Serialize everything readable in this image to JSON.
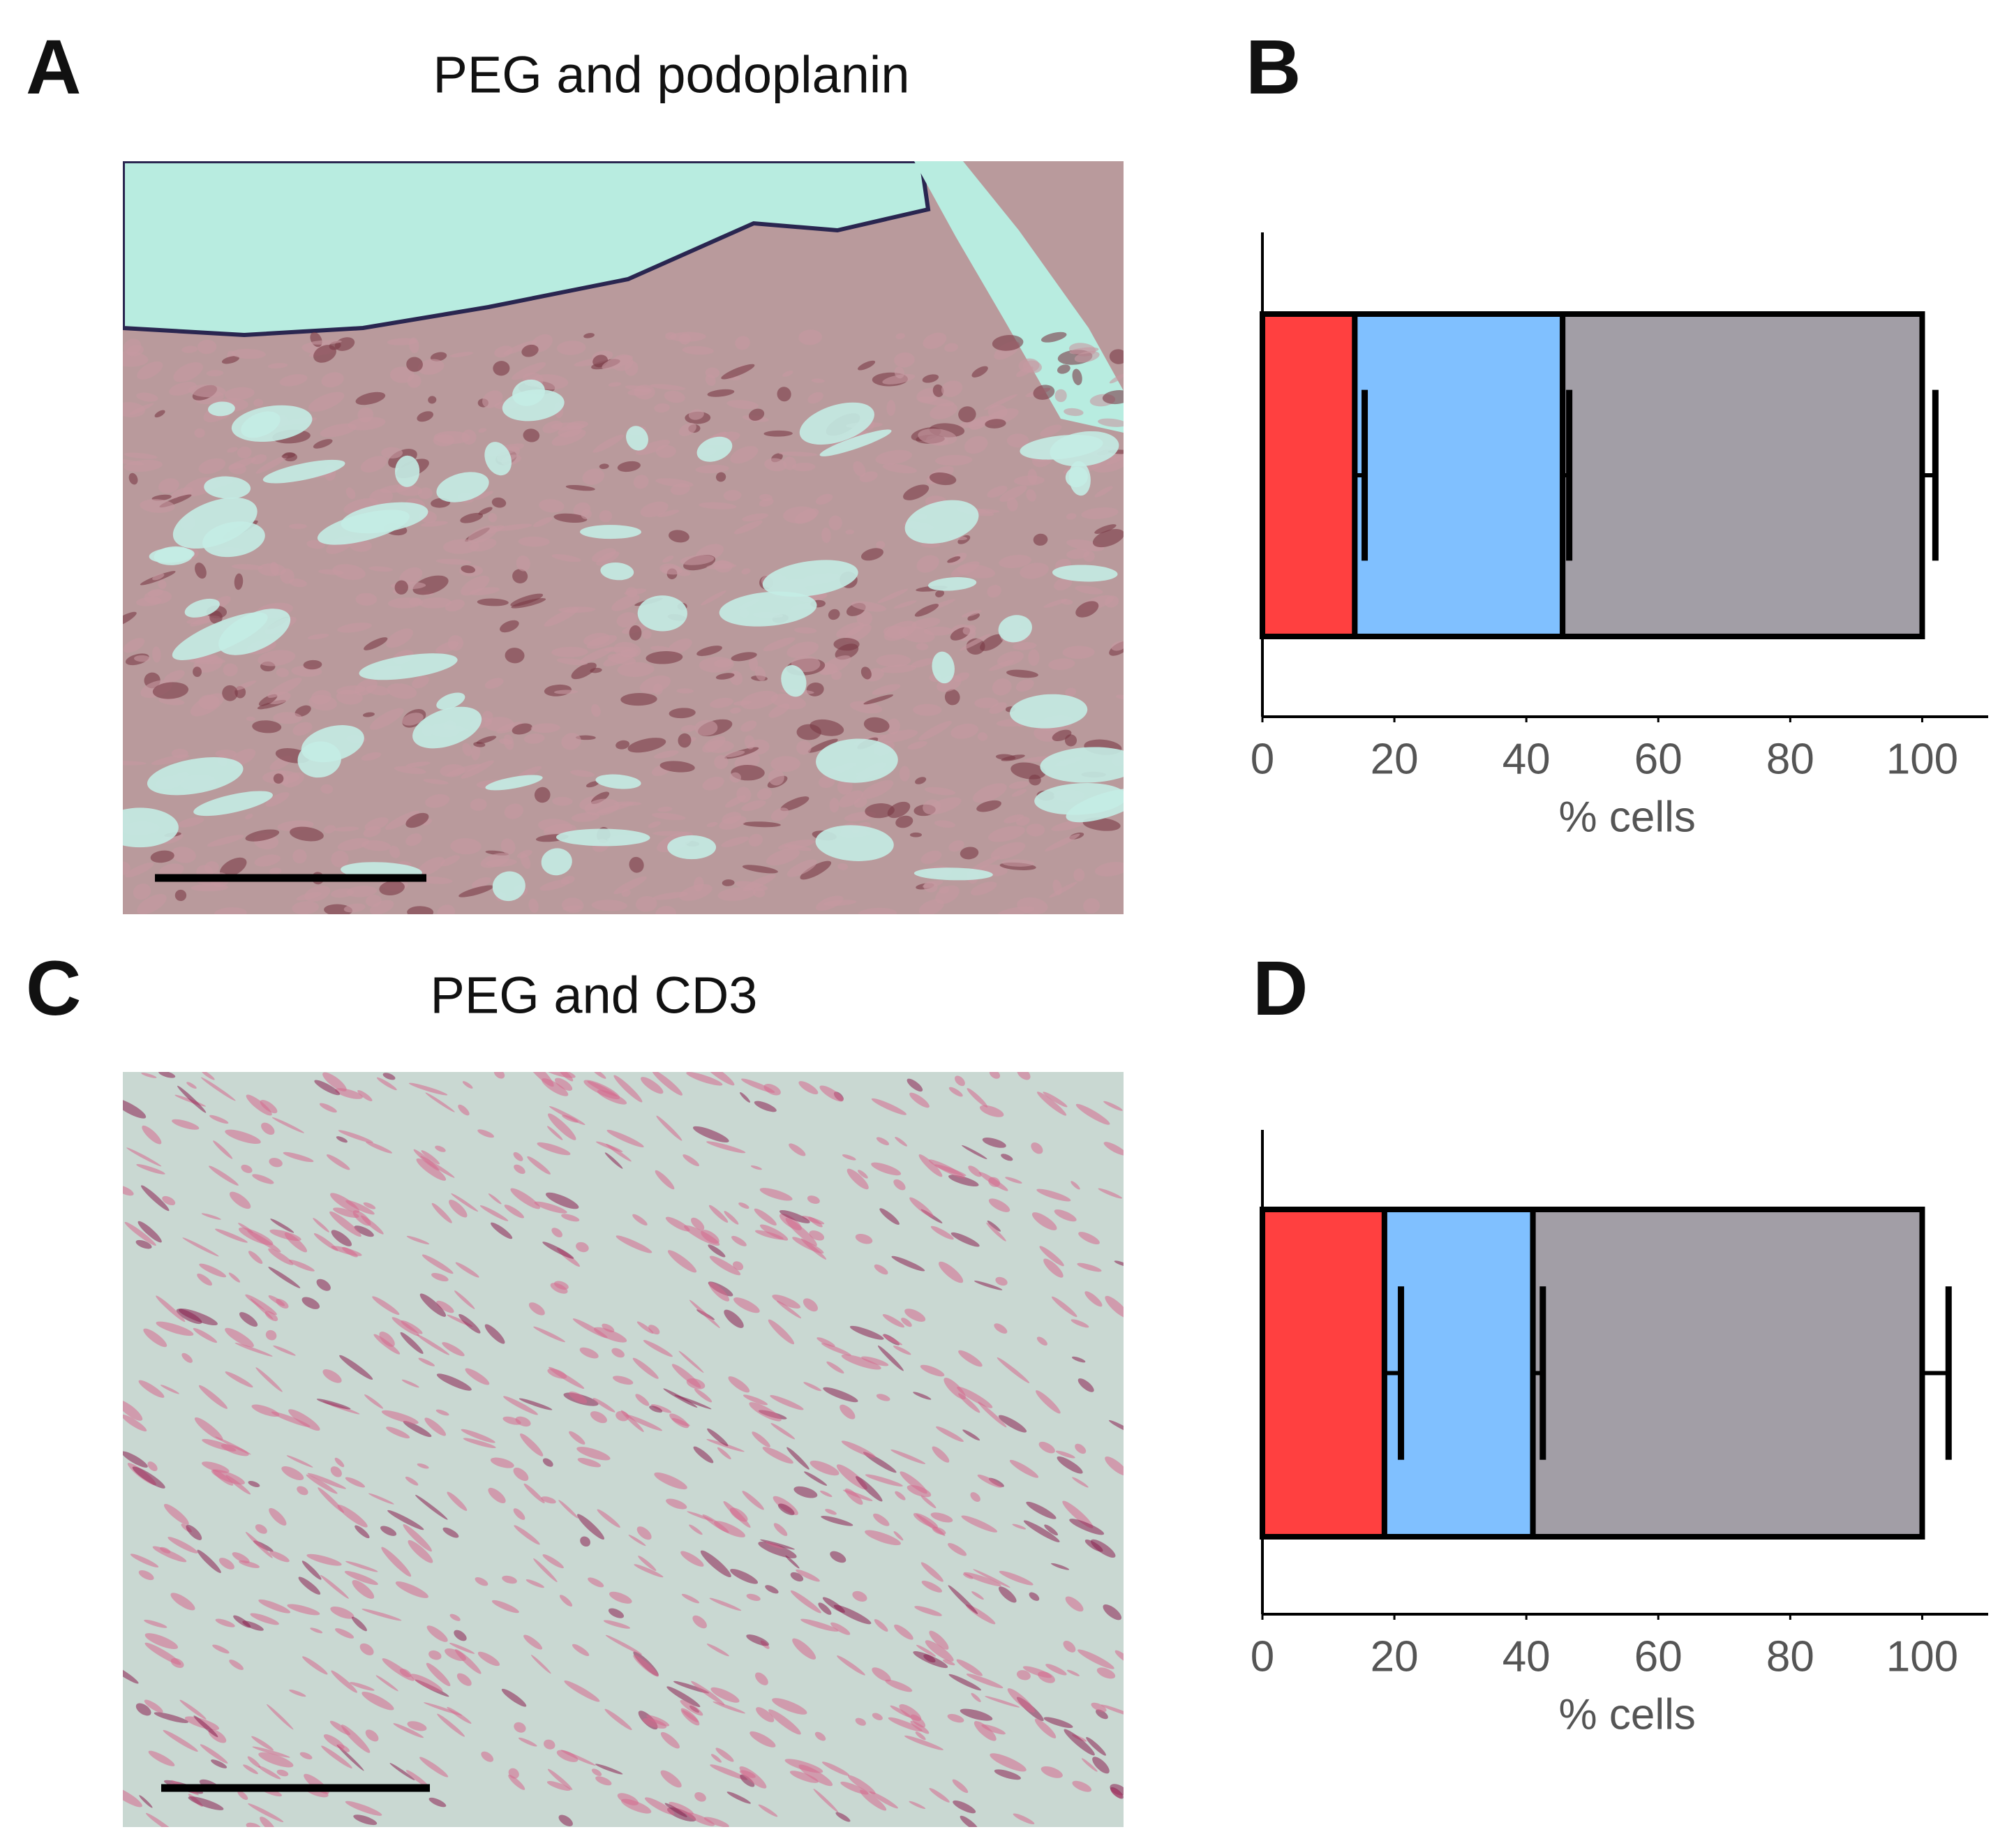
{
  "panels": [
    {
      "letter": "A",
      "title": "PEG and podoplanin"
    },
    {
      "letter": "B"
    },
    {
      "letter": "C",
      "title": "PEG and CD3"
    },
    {
      "letter": "D"
    }
  ],
  "chart_data": [
    {
      "type": "bar",
      "orientation": "horizontal",
      "stacked": true,
      "categories": [
        null
      ],
      "xlabel": "% cells",
      "xlim": [
        0,
        110
      ],
      "xticks": [
        0,
        20,
        40,
        60,
        80,
        100
      ],
      "series": [
        {
          "color": "#ff4040",
          "values": [
            14
          ],
          "errors": [
            1.5
          ]
        },
        {
          "color": "#80c0ff",
          "values": [
            31.5
          ],
          "errors": [
            1
          ]
        },
        {
          "color": "#a29ea6",
          "values": [
            54.5
          ],
          "errors": [
            2
          ]
        }
      ]
    },
    {
      "type": "bar",
      "orientation": "horizontal",
      "stacked": true,
      "categories": [
        null
      ],
      "xlabel": "% cells",
      "xlim": [
        0,
        110
      ],
      "xticks": [
        0,
        20,
        40,
        60,
        80,
        100
      ],
      "series": [
        {
          "color": "#ff4040",
          "values": [
            18.5
          ],
          "errors": [
            2.5
          ]
        },
        {
          "color": "#80c0ff",
          "values": [
            22.5
          ],
          "errors": [
            1.5
          ]
        },
        {
          "color": "#a29ea6",
          "values": [
            59
          ],
          "errors": [
            4
          ]
        }
      ]
    }
  ]
}
